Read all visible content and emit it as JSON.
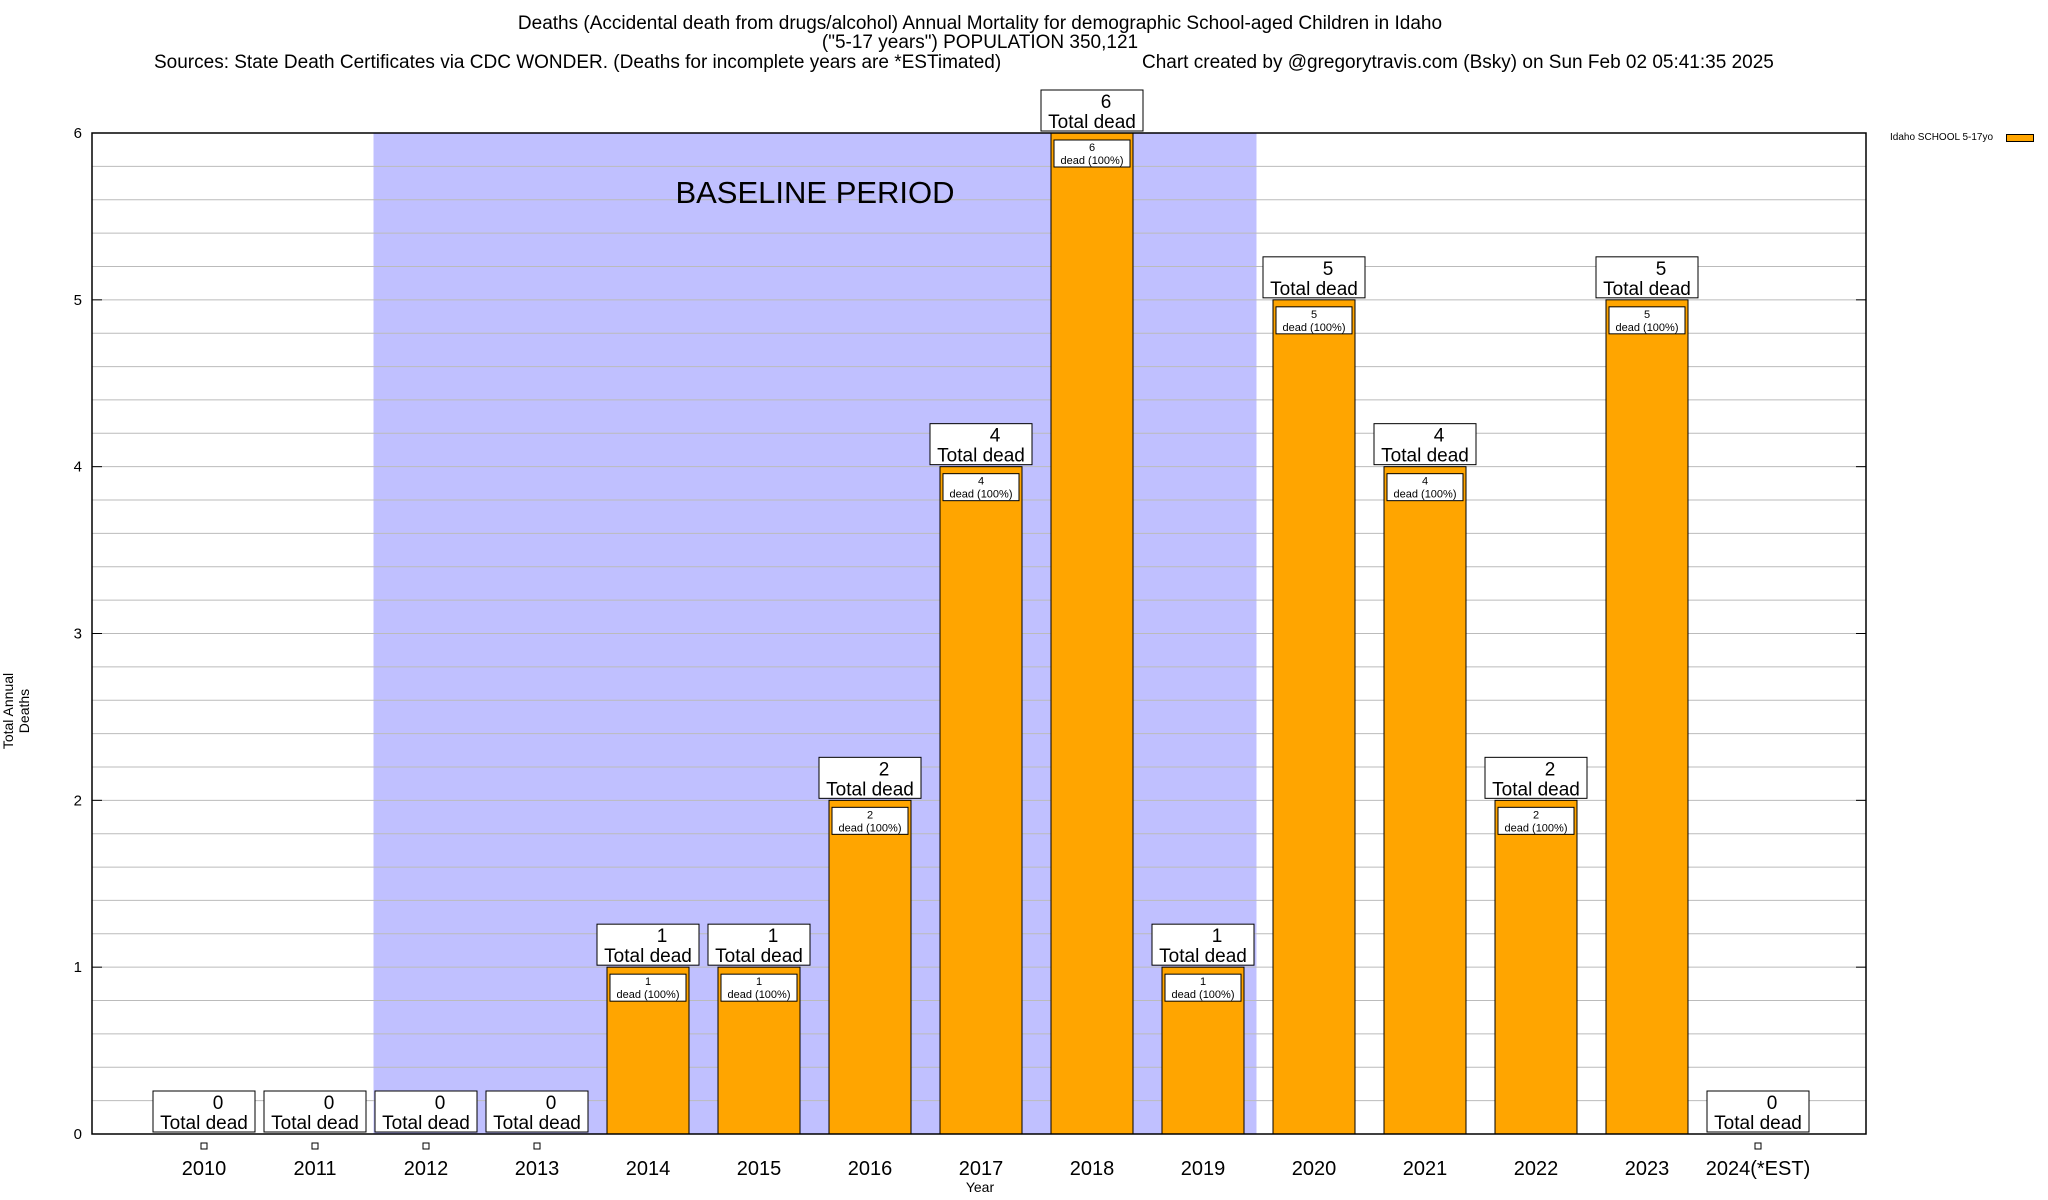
{
  "titles": {
    "line1": "Deaths (Accidental death from drugs/alcohol) Annual Mortality for demographic School-aged Children in Idaho",
    "line2": "(\"5-17 years\") POPULATION 350,121",
    "line3_left": "Sources: State Death Certificates via CDC WONDER. (Deaths for incomplete years are *ESTimated)",
    "line3_right": "Chart created by @gregorytravis.com (Bsky) on Sun Feb 02 05:41:35 2025"
  },
  "chart_data": {
    "type": "bar",
    "categories": [
      "2010",
      "2011",
      "2012",
      "2013",
      "2014",
      "2015",
      "2016",
      "2017",
      "2018",
      "2019",
      "2020",
      "2021",
      "2022",
      "2023",
      "2024(*EST)"
    ],
    "series": [
      {
        "name": "Idaho SCHOOL 5-17yo",
        "values": [
          0,
          0,
          0,
          0,
          1,
          1,
          2,
          4,
          6,
          1,
          5,
          4,
          2,
          5,
          0
        ]
      }
    ],
    "total_label_suffix": "Total dead",
    "inner_label_suffix": "dead (100%)",
    "xlabel": "Year",
    "ylabel": "Total Annual Deaths",
    "ylim": [
      0,
      6
    ],
    "yticks": [
      0,
      1,
      2,
      3,
      4,
      5,
      6
    ],
    "annotation": {
      "text": "BASELINE PERIOD",
      "start_category": "2012",
      "end_category": "2019"
    },
    "grid": true,
    "legend_position": "top-right"
  },
  "colors": {
    "bar": "#ffa500",
    "baseline_shade": "#c0c0ff",
    "grid": "#bbbbbb"
  }
}
